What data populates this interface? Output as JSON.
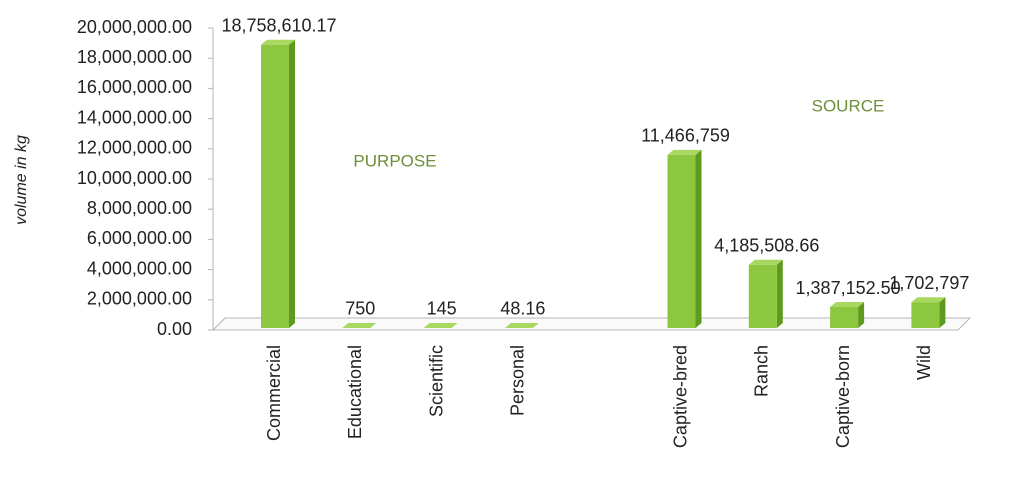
{
  "chart_data": {
    "type": "bar",
    "y_label": "volume in kg",
    "annotations": [
      "PURPOSE",
      "SOURCE"
    ],
    "categories": [
      "Commercial",
      "Educational",
      "Scientific",
      "Personal",
      null,
      "Captive-bred",
      "Ranch",
      "Captive-born",
      "Wild"
    ],
    "values": [
      18758610.17,
      750,
      145,
      48.16,
      null,
      11466759,
      4185508.66,
      1387152.5,
      1702797
    ],
    "value_labels": [
      "18,758,610.17",
      "750",
      "145",
      "48.16",
      null,
      "11,466,759",
      "4,185,508.66",
      "1,387,152.50",
      "1,702,797"
    ],
    "color": "#8dc63f",
    "ylim": [
      0,
      20000000
    ],
    "yticks": [
      {
        "value": 0,
        "label": "0.00"
      },
      {
        "value": 2000000,
        "label": "2,000,000.00"
      },
      {
        "value": 4000000,
        "label": "4,000,000.00"
      },
      {
        "value": 6000000,
        "label": "6,000,000.00"
      },
      {
        "value": 8000000,
        "label": "8,000,000.00"
      },
      {
        "value": 10000000,
        "label": "10,000,000.00"
      },
      {
        "value": 12000000,
        "label": "12,000,000.00"
      },
      {
        "value": 14000000,
        "label": "14,000,000.00"
      },
      {
        "value": 16000000,
        "label": "16,000,000.00"
      },
      {
        "value": 18000000,
        "label": "18,000,000.00"
      },
      {
        "value": 20000000,
        "label": "20,000,000.00"
      }
    ],
    "grid": false
  }
}
